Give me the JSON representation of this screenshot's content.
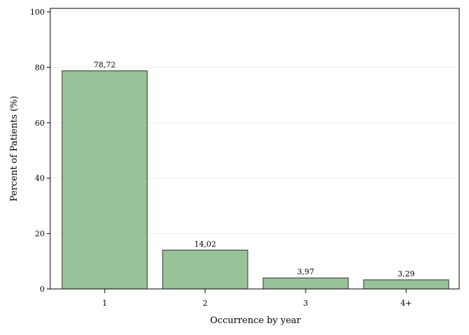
{
  "chart_data": {
    "type": "bar",
    "categories": [
      "1",
      "2",
      "3",
      "4+"
    ],
    "values": [
      78.72,
      14.02,
      3.97,
      3.29
    ],
    "data_labels": [
      "78,72",
      "14,02",
      "3,97",
      "3,29"
    ],
    "xlabel": "Occurrence by year",
    "ylabel": "Percent of Patients (%)",
    "ylim": [
      0,
      100
    ],
    "yticks": [
      0,
      20,
      40,
      60,
      80,
      100
    ],
    "ytick_labels": [
      "0",
      "20",
      "40",
      "60",
      "80",
      "100"
    ],
    "grid": true,
    "bar_color": "#98c298",
    "bar_edge_color": "#333333",
    "grid_color": "#ececec"
  }
}
